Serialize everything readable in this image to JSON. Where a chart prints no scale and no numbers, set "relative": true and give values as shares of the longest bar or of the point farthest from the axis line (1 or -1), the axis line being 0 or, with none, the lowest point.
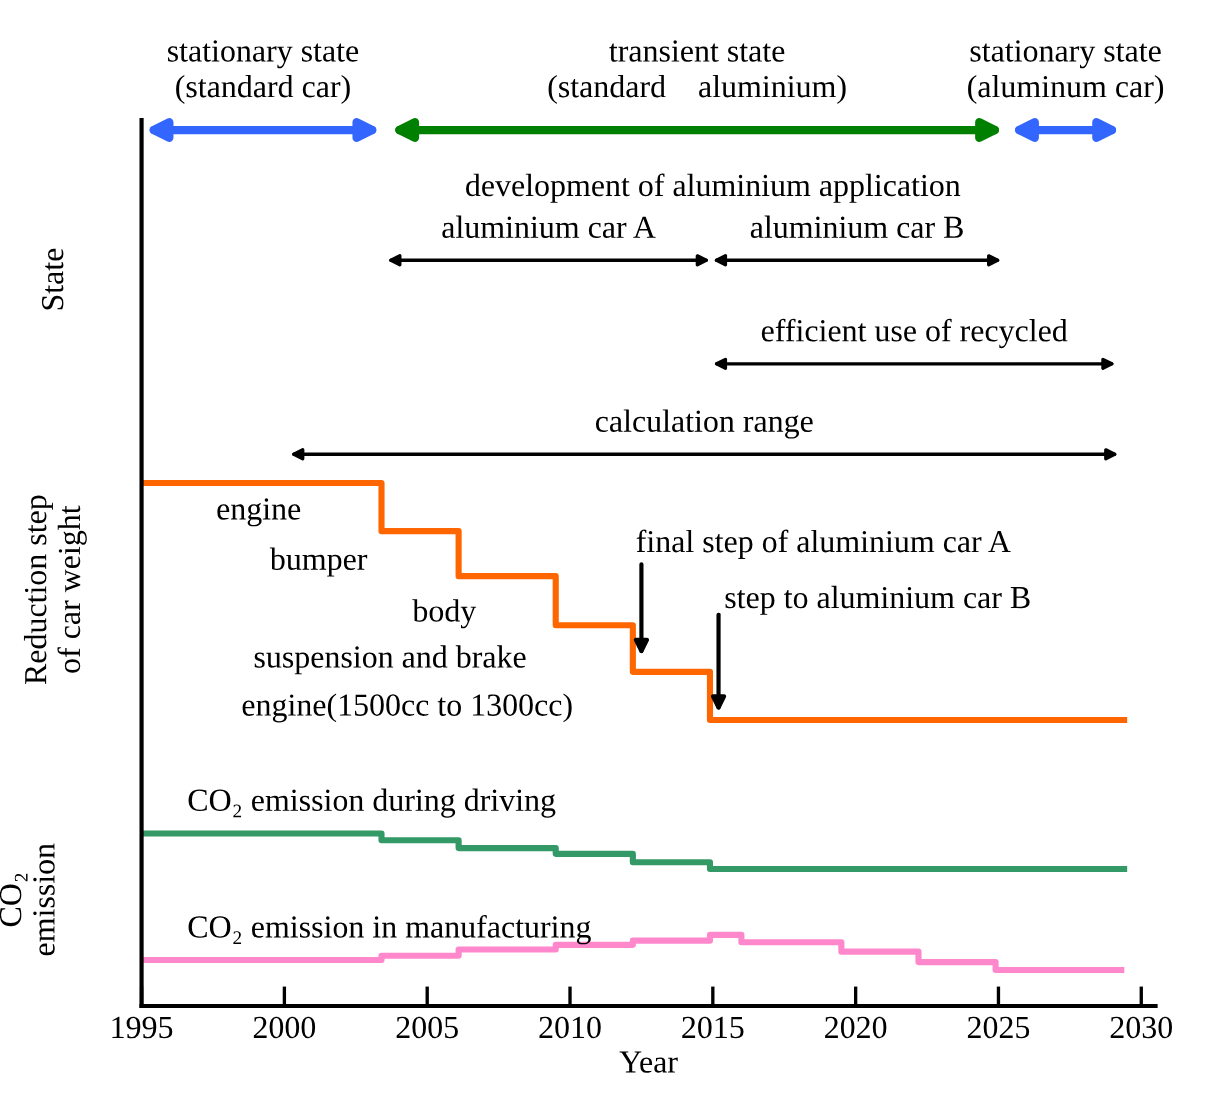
{
  "chart_data": {
    "type": "step",
    "relative": true,
    "xlabel": "Year",
    "ylabel": "Reduction step\nof car weight",
    "xlim": [
      1995,
      2030.5
    ],
    "xticks": [
      1995,
      2000,
      2005,
      2010,
      2015,
      2020,
      2025,
      2030
    ],
    "grid": false,
    "legend": false,
    "series": [
      {
        "color": "#ff6600",
        "x": [
          1995,
          2003.4,
          2006.1,
          2009.5,
          2012.2,
          2014.9,
          2029.4
        ],
        "values": [
          1,
          0.908,
          0.822,
          0.728,
          0.639,
          0.547,
          0.547
        ]
      },
      {
        "name": "CO₂ emission during driving",
        "color": "#339966",
        "x": [
          1995,
          2003.4,
          2006.1,
          2009.5,
          2012.2,
          2014.9,
          2029.4
        ],
        "values": [
          0.33,
          0.317,
          0.302,
          0.291,
          0.275,
          0.262,
          0.262
        ]
      },
      {
        "name": "CO₂ emission in manufacturing",
        "color": "#ff88cc",
        "x": [
          1995,
          2003.4,
          2006.1,
          2009.5,
          2012.2,
          2014.9,
          2016.0,
          2019.5,
          2022.2,
          2024.9,
          2029.3
        ],
        "values": [
          0.088,
          0.096,
          0.108,
          0.117,
          0.125,
          0.136,
          0.122,
          0.104,
          0.084,
          0.069,
          0.069
        ]
      }
    ],
    "annotations": [
      "stationary state\n(standard car)",
      "transient state\n(standard    aluminium)",
      "stationary state\n(aluminum car)",
      "aluminium car A",
      "aluminium car B",
      "efficient use of recycled",
      "calculation range",
      "State",
      "CO₂\nemission",
      "development of aluminium application",
      "engine",
      "bumper",
      "body",
      "suspension and brake",
      "engine(1500cc to 1300cc)",
      {
        "text": "final step of aluminium car A",
        "x": 2012.5,
        "y": 0.67
      },
      {
        "text": "step to aluminium car B",
        "x": 2015.2,
        "y": 0.562
      }
    ]
  }
}
